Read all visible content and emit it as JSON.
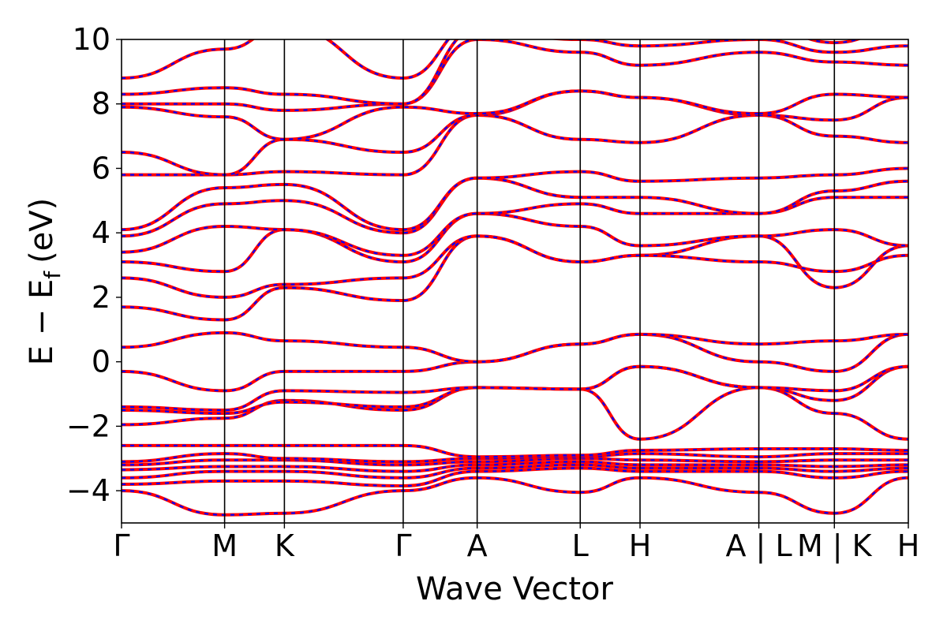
{
  "chart_data": {
    "type": "line",
    "title": "",
    "xlabel": "Wave Vector",
    "ylabel": "E − E",
    "ylabel_subscript": "f",
    "ylabel_unit": "(eV)",
    "ylim": [
      -5,
      10
    ],
    "yticks": [
      {
        "value": 10,
        "label": "10"
      },
      {
        "value": 8,
        "label": "8"
      },
      {
        "value": 6,
        "label": "6"
      },
      {
        "value": 4,
        "label": "4"
      },
      {
        "value": 2,
        "label": "2"
      },
      {
        "value": 0,
        "label": "0"
      },
      {
        "value": -2,
        "label": "−2"
      },
      {
        "value": -4,
        "label": "−4"
      }
    ],
    "high_symmetry_points": [
      {
        "label": "Γ",
        "x": 0.0
      },
      {
        "label": "M",
        "x": 0.131
      },
      {
        "label": "K",
        "x": 0.207
      },
      {
        "label": "Γ",
        "x": 0.358
      },
      {
        "label": "A",
        "x": 0.452
      },
      {
        "label": "L",
        "x": 0.583
      },
      {
        "label": "H",
        "x": 0.659
      },
      {
        "label": "A | L",
        "x": 0.81
      },
      {
        "label": "M | K",
        "x": 0.906
      },
      {
        "label": "H",
        "x": 1.0
      }
    ],
    "series_colors": {
      "primary": "#ff0000",
      "overlay": "#0000ff"
    },
    "bands": [
      [
        [
          0,
          -4.0
        ],
        [
          0.131,
          -4.75
        ],
        [
          0.207,
          -4.7
        ],
        [
          0.358,
          -4.0
        ],
        [
          0.452,
          -3.6
        ],
        [
          0.583,
          -4.05
        ],
        [
          0.659,
          -3.6
        ],
        [
          0.81,
          -4.05
        ],
        [
          0.81,
          -4.05
        ],
        [
          0.906,
          -4.7
        ],
        [
          0.906,
          -4.7
        ],
        [
          1.0,
          -3.6
        ]
      ],
      [
        [
          0,
          -3.8
        ],
        [
          0.131,
          -3.7
        ],
        [
          0.207,
          -3.7
        ],
        [
          0.358,
          -3.85
        ],
        [
          0.452,
          -3.4
        ],
        [
          0.583,
          -3.3
        ],
        [
          0.659,
          -3.4
        ],
        [
          0.81,
          -3.4
        ],
        [
          0.81,
          -3.4
        ],
        [
          0.906,
          -3.6
        ],
        [
          0.906,
          -3.6
        ],
        [
          1.0,
          -3.4
        ]
      ],
      [
        [
          0,
          -3.6
        ],
        [
          0.131,
          -3.4
        ],
        [
          0.207,
          -3.4
        ],
        [
          0.358,
          -3.6
        ],
        [
          0.452,
          -3.3
        ],
        [
          0.583,
          -3.2
        ],
        [
          0.659,
          -3.3
        ],
        [
          0.81,
          -3.3
        ],
        [
          0.81,
          -3.3
        ],
        [
          0.906,
          -3.4
        ],
        [
          0.906,
          -3.4
        ],
        [
          1.0,
          -3.3
        ]
      ],
      [
        [
          0,
          -3.35
        ],
        [
          0.131,
          -3.25
        ],
        [
          0.207,
          -3.25
        ],
        [
          0.358,
          -3.4
        ],
        [
          0.452,
          -3.2
        ],
        [
          0.583,
          -3.1
        ],
        [
          0.659,
          -3.2
        ],
        [
          0.81,
          -3.2
        ],
        [
          0.81,
          -3.2
        ],
        [
          0.906,
          -3.25
        ],
        [
          0.906,
          -3.25
        ],
        [
          1.0,
          -3.2
        ]
      ],
      [
        [
          0,
          -3.2
        ],
        [
          0.131,
          -3.05
        ],
        [
          0.207,
          -3.05
        ],
        [
          0.358,
          -3.2
        ],
        [
          0.452,
          -3.1
        ],
        [
          0.583,
          -3.0
        ],
        [
          0.659,
          -3.05
        ],
        [
          0.81,
          -3.1
        ],
        [
          0.81,
          -3.1
        ],
        [
          0.906,
          -3.05
        ],
        [
          0.906,
          -3.05
        ],
        [
          1.0,
          -3.05
        ]
      ],
      [
        [
          0,
          -3.1
        ],
        [
          0.131,
          -2.85
        ],
        [
          0.207,
          -3.0
        ],
        [
          0.358,
          -3.1
        ],
        [
          0.452,
          -3.0
        ],
        [
          0.583,
          -2.95
        ],
        [
          0.659,
          -2.85
        ],
        [
          0.81,
          -2.95
        ],
        [
          0.81,
          -2.95
        ],
        [
          0.906,
          -2.85
        ],
        [
          0.906,
          -2.85
        ],
        [
          1.0,
          -2.85
        ]
      ],
      [
        [
          0,
          -2.6
        ],
        [
          0.131,
          -2.6
        ],
        [
          0.207,
          -2.6
        ],
        [
          0.358,
          -2.6
        ],
        [
          0.452,
          -2.95
        ],
        [
          0.583,
          -2.9
        ],
        [
          0.659,
          -2.75
        ],
        [
          0.81,
          -2.7
        ],
        [
          0.81,
          -2.7
        ],
        [
          0.906,
          -2.7
        ],
        [
          0.906,
          -2.7
        ],
        [
          1.0,
          -2.75
        ]
      ],
      [
        [
          0,
          -1.95
        ],
        [
          0.131,
          -1.75
        ],
        [
          0.207,
          -1.2
        ],
        [
          0.358,
          -1.5
        ],
        [
          0.452,
          -0.8
        ],
        [
          0.583,
          -0.85
        ],
        [
          0.659,
          -2.4
        ],
        [
          0.81,
          -0.8
        ],
        [
          0.81,
          -0.8
        ],
        [
          0.906,
          -1.6
        ],
        [
          0.906,
          -1.6
        ],
        [
          1.0,
          -2.4
        ]
      ],
      [
        [
          0,
          -1.5
        ],
        [
          0.131,
          -1.6
        ],
        [
          0.207,
          -1.25
        ],
        [
          0.358,
          -1.4
        ],
        [
          0.452,
          -0.8
        ],
        [
          0.583,
          -0.85
        ],
        [
          0.659,
          -0.15
        ],
        [
          0.81,
          -0.8
        ],
        [
          0.81,
          -0.8
        ],
        [
          0.906,
          -1.2
        ],
        [
          0.906,
          -1.2
        ],
        [
          1.0,
          -0.15
        ]
      ],
      [
        [
          0,
          -1.4
        ],
        [
          0.131,
          -1.5
        ],
        [
          0.207,
          -0.9
        ],
        [
          0.358,
          -0.95
        ],
        [
          0.452,
          -0.8
        ],
        [
          0.583,
          -0.85
        ],
        [
          0.659,
          -0.15
        ],
        [
          0.81,
          -0.8
        ],
        [
          0.81,
          -0.8
        ],
        [
          0.906,
          -0.9
        ],
        [
          0.906,
          -0.9
        ],
        [
          1.0,
          -0.15
        ]
      ],
      [
        [
          0,
          -0.3
        ],
        [
          0.131,
          -0.9
        ],
        [
          0.207,
          -0.3
        ],
        [
          0.358,
          -0.3
        ],
        [
          0.452,
          0.0
        ],
        [
          0.583,
          0.55
        ],
        [
          0.659,
          0.85
        ],
        [
          0.81,
          0.0
        ],
        [
          0.81,
          0.0
        ],
        [
          0.906,
          -0.3
        ],
        [
          0.906,
          -0.3
        ],
        [
          1.0,
          0.85
        ]
      ],
      [
        [
          0,
          0.45
        ],
        [
          0.131,
          0.9
        ],
        [
          0.207,
          0.65
        ],
        [
          0.358,
          0.45
        ],
        [
          0.452,
          0.0
        ],
        [
          0.583,
          0.55
        ],
        [
          0.659,
          0.85
        ],
        [
          0.81,
          0.55
        ],
        [
          0.81,
          0.55
        ],
        [
          0.906,
          0.65
        ],
        [
          0.906,
          0.65
        ],
        [
          1.0,
          0.85
        ]
      ],
      [
        [
          0,
          1.7
        ],
        [
          0.131,
          1.3
        ],
        [
          0.207,
          2.3
        ],
        [
          0.358,
          1.9
        ],
        [
          0.452,
          3.9
        ],
        [
          0.583,
          3.1
        ],
        [
          0.659,
          3.3
        ],
        [
          0.81,
          3.9
        ],
        [
          0.81,
          3.9
        ],
        [
          0.906,
          2.3
        ],
        [
          0.906,
          2.3
        ],
        [
          1.0,
          3.6
        ]
      ],
      [
        [
          0,
          2.6
        ],
        [
          0.131,
          2.0
        ],
        [
          0.207,
          2.4
        ],
        [
          0.358,
          2.6
        ],
        [
          0.452,
          3.9
        ],
        [
          0.583,
          3.1
        ],
        [
          0.659,
          3.3
        ],
        [
          0.81,
          3.1
        ],
        [
          0.81,
          3.1
        ],
        [
          0.906,
          2.8
        ],
        [
          0.906,
          2.8
        ],
        [
          1.0,
          3.3
        ]
      ],
      [
        [
          0,
          3.1
        ],
        [
          0.131,
          2.8
        ],
        [
          0.207,
          4.1
        ],
        [
          0.358,
          3.1
        ],
        [
          0.452,
          4.6
        ],
        [
          0.583,
          4.2
        ],
        [
          0.659,
          3.6
        ],
        [
          0.81,
          3.9
        ],
        [
          0.81,
          3.9
        ],
        [
          0.906,
          4.1
        ],
        [
          0.906,
          4.1
        ],
        [
          1.0,
          3.6
        ]
      ],
      [
        [
          0,
          3.4
        ],
        [
          0.131,
          4.2
        ],
        [
          0.207,
          4.1
        ],
        [
          0.358,
          3.3
        ],
        [
          0.452,
          4.6
        ],
        [
          0.583,
          4.9
        ],
        [
          0.659,
          4.6
        ],
        [
          0.81,
          4.6
        ],
        [
          0.81,
          4.6
        ],
        [
          0.906,
          5.1
        ],
        [
          0.906,
          5.1
        ],
        [
          1.0,
          5.1
        ]
      ],
      [
        [
          0,
          3.9
        ],
        [
          0.131,
          4.9
        ],
        [
          0.207,
          5.0
        ],
        [
          0.358,
          4.0
        ],
        [
          0.452,
          5.7
        ],
        [
          0.583,
          5.1
        ],
        [
          0.659,
          5.1
        ],
        [
          0.81,
          4.6
        ],
        [
          0.81,
          4.6
        ],
        [
          0.906,
          5.3
        ],
        [
          0.906,
          5.3
        ],
        [
          1.0,
          5.6
        ]
      ],
      [
        [
          0,
          4.1
        ],
        [
          0.131,
          5.4
        ],
        [
          0.207,
          5.5
        ],
        [
          0.358,
          4.1
        ],
        [
          0.452,
          5.7
        ],
        [
          0.583,
          5.9
        ],
        [
          0.659,
          5.6
        ],
        [
          0.81,
          5.7
        ],
        [
          0.81,
          5.7
        ],
        [
          0.906,
          5.8
        ],
        [
          0.906,
          5.8
        ],
        [
          1.0,
          6.0
        ]
      ],
      [
        [
          0,
          5.8
        ],
        [
          0.131,
          5.8
        ],
        [
          0.207,
          5.9
        ],
        [
          0.358,
          5.8
        ],
        [
          0.452,
          7.65
        ],
        [
          0.583,
          6.9
        ],
        [
          0.659,
          6.8
        ],
        [
          0.81,
          7.65
        ],
        [
          0.81,
          7.65
        ],
        [
          0.906,
          7.0
        ],
        [
          0.906,
          7.0
        ],
        [
          1.0,
          6.8
        ]
      ],
      [
        [
          0,
          6.5
        ],
        [
          0.131,
          5.8
        ],
        [
          0.207,
          6.9
        ],
        [
          0.358,
          6.5
        ],
        [
          0.452,
          7.65
        ],
        [
          0.583,
          8.4
        ],
        [
          0.659,
          8.2
        ],
        [
          0.81,
          7.65
        ],
        [
          0.81,
          7.65
        ],
        [
          0.906,
          7.5
        ],
        [
          0.906,
          7.5
        ],
        [
          1.0,
          8.2
        ]
      ],
      [
        [
          0,
          7.9
        ],
        [
          0.131,
          7.6
        ],
        [
          0.207,
          6.9
        ],
        [
          0.358,
          7.9
        ],
        [
          0.452,
          7.7
        ],
        [
          0.583,
          8.4
        ],
        [
          0.659,
          8.2
        ],
        [
          0.81,
          7.7
        ],
        [
          0.81,
          7.7
        ],
        [
          0.906,
          8.3
        ],
        [
          0.906,
          8.3
        ],
        [
          1.0,
          8.2
        ]
      ],
      [
        [
          0,
          8.0
        ],
        [
          0.131,
          8.0
        ],
        [
          0.207,
          7.8
        ],
        [
          0.358,
          8.0
        ],
        [
          0.452,
          10.0
        ],
        [
          0.583,
          9.6
        ],
        [
          0.659,
          9.2
        ],
        [
          0.81,
          9.6
        ],
        [
          0.81,
          9.6
        ],
        [
          0.906,
          9.3
        ],
        [
          0.906,
          9.3
        ],
        [
          1.0,
          9.2
        ]
      ],
      [
        [
          0,
          8.3
        ],
        [
          0.131,
          8.5
        ],
        [
          0.207,
          8.3
        ],
        [
          0.358,
          8.0
        ],
        [
          0.452,
          10.3
        ],
        [
          0.583,
          10.0
        ],
        [
          0.659,
          9.8
        ],
        [
          0.81,
          10.0
        ],
        [
          0.81,
          10.0
        ],
        [
          0.906,
          9.6
        ],
        [
          0.906,
          9.6
        ],
        [
          1.0,
          9.8
        ]
      ],
      [
        [
          0,
          8.8
        ],
        [
          0.131,
          9.7
        ],
        [
          0.207,
          10.4
        ],
        [
          0.358,
          8.8
        ],
        [
          0.452,
          10.5
        ],
        [
          0.583,
          10.5
        ],
        [
          0.659,
          10.5
        ],
        [
          0.81,
          10.5
        ],
        [
          0.81,
          10.5
        ],
        [
          0.906,
          9.9
        ],
        [
          0.906,
          9.9
        ],
        [
          1.0,
          10.5
        ]
      ]
    ]
  }
}
